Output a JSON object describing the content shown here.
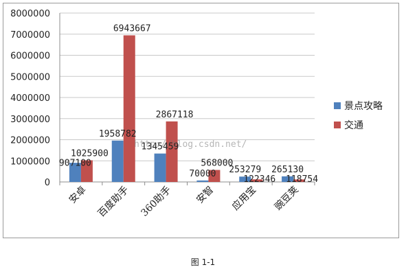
{
  "chart_data": {
    "type": "bar",
    "categories": [
      "安卓",
      "百度助手",
      "360助手",
      "安智",
      "应用宝",
      "豌豆荚"
    ],
    "series": [
      {
        "name": "景点攻略",
        "values": [
          907100,
          1958782,
          1345459,
          70000,
          253279,
          265130
        ]
      },
      {
        "name": "交通",
        "values": [
          1025900,
          6943667,
          2867118,
          568000,
          122346,
          118754
        ]
      }
    ],
    "ylim": [
      0,
      8000000
    ],
    "yticks": [
      "0",
      "1000000",
      "2000000",
      "3000000",
      "4000000",
      "5000000",
      "6000000",
      "7000000",
      "8000000"
    ],
    "grid": true,
    "legend": "right",
    "colors": [
      "#4f81bd",
      "#c0504d"
    ]
  },
  "caption": "图 1-1",
  "watermark": "http://blog.csdn.net/"
}
